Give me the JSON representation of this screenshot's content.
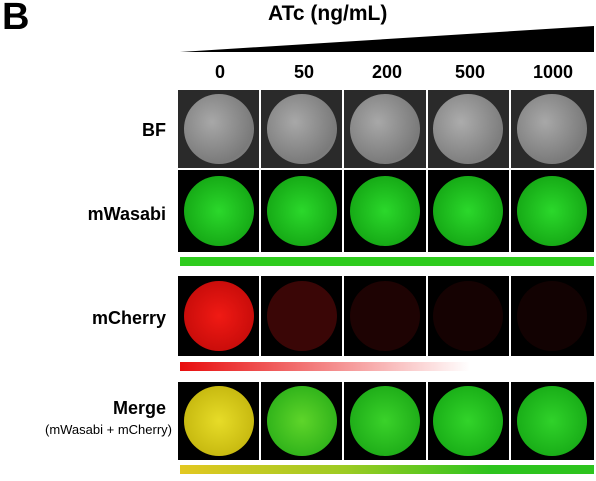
{
  "panel_label": "B",
  "header": {
    "title": "ATc (ng/mL)",
    "concentrations": [
      "0",
      "50",
      "200",
      "500",
      "1000"
    ]
  },
  "rows": [
    {
      "label": "BF",
      "sublabel": ""
    },
    {
      "label": "mWasabi",
      "sublabel": ""
    },
    {
      "label": "mCherry",
      "sublabel": ""
    },
    {
      "label": "Merge",
      "sublabel": "(mWasabi + mCherry)"
    }
  ],
  "colors": {
    "green": "#22c722",
    "red": "#e0130f",
    "yellow": "#e4d21a",
    "black": "#000000"
  }
}
